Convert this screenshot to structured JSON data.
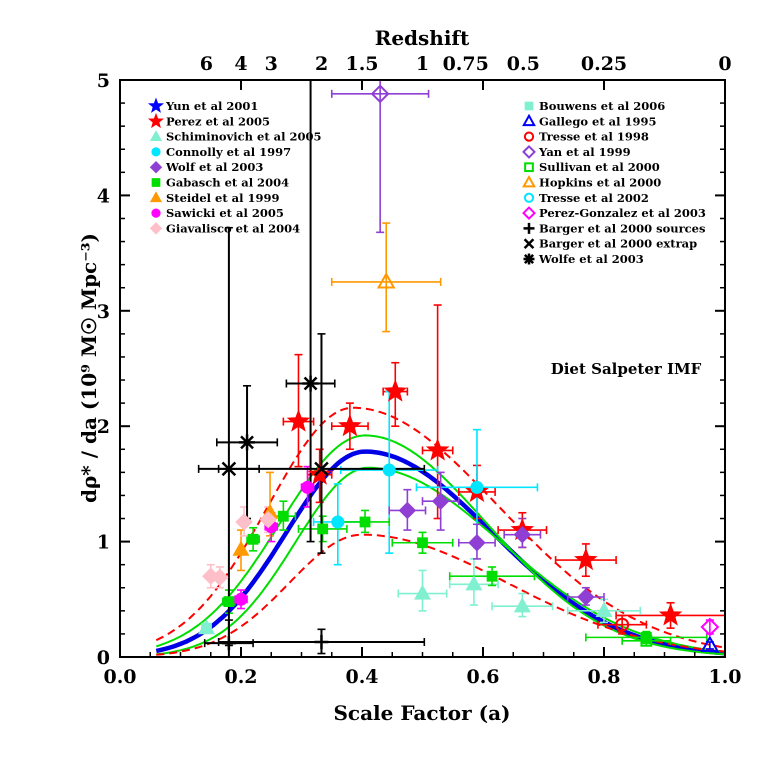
{
  "chart_data": {
    "type": "scatter",
    "title": "",
    "xlabel": "Scale Factor (a)",
    "ylabel": "dρ* / da  (10⁹ M☉ Mpc⁻³)",
    "top_axis_label": "Redshift",
    "xlim": [
      0.0,
      1.0
    ],
    "ylim": [
      0.0,
      5.0
    ],
    "x_ticks": [
      {
        "value": 0.0,
        "label": "0.0"
      },
      {
        "value": 0.2,
        "label": "0.2"
      },
      {
        "value": 0.4,
        "label": "0.4"
      },
      {
        "value": 0.6,
        "label": "0.6"
      },
      {
        "value": 0.8,
        "label": "0.8"
      },
      {
        "value": 1.0,
        "label": "1.0"
      }
    ],
    "y_ticks": [
      {
        "value": 0,
        "label": "0"
      },
      {
        "value": 1,
        "label": "1"
      },
      {
        "value": 2,
        "label": "2"
      },
      {
        "value": 3,
        "label": "3"
      },
      {
        "value": 4,
        "label": "4"
      },
      {
        "value": 5,
        "label": "5"
      }
    ],
    "redshift_ticks": [
      {
        "z": 6,
        "label": "6"
      },
      {
        "z": 4,
        "label": "4"
      },
      {
        "z": 3,
        "label": "3"
      },
      {
        "z": 2,
        "label": "2"
      },
      {
        "z": 1.5,
        "label": "1.5"
      },
      {
        "z": 1,
        "label": "1"
      },
      {
        "z": 0.75,
        "label": "0.75"
      },
      {
        "z": 0.5,
        "label": "0.5"
      },
      {
        "z": 0.25,
        "label": "0.25"
      },
      {
        "z": 0,
        "label": "0"
      }
    ],
    "annotation": "Diet Salpeter IMF",
    "fit_curves": [
      {
        "name": "best fit",
        "style": "solid-thick",
        "color": "#0000e6",
        "peak_a": 0.405,
        "peak_y": 1.78,
        "left_width": 0.13,
        "right_width": 0.21
      },
      {
        "name": "upper 1σ",
        "style": "solid",
        "color": "#00dd00",
        "peak_a": 0.405,
        "peak_y": 1.92,
        "left_width": 0.14,
        "right_width": 0.2
      },
      {
        "name": "lower 1σ",
        "style": "solid",
        "color": "#00dd00",
        "peak_a": 0.41,
        "peak_y": 1.64,
        "left_width": 0.12,
        "right_width": 0.22
      },
      {
        "name": "upper 3σ",
        "style": "dashed",
        "color": "#ff0000",
        "peak_a": 0.385,
        "peak_y": 2.16,
        "left_width": 0.14,
        "right_width": 0.24
      },
      {
        "name": "lower 3σ",
        "style": "dashed",
        "color": "#ff0000",
        "peak_a": 0.4,
        "peak_y": 1.06,
        "left_width": 0.12,
        "right_width": 0.24
      }
    ],
    "series": [
      {
        "name": "Yun et al 2001",
        "symbol": "star",
        "color": "#0000ff",
        "filled": true,
        "points": []
      },
      {
        "name": "Perez et al 2005",
        "symbol": "star",
        "color": "#ff0000",
        "filled": true,
        "points": [
          {
            "x": 0.295,
            "y": 2.04,
            "xerr": 0.025,
            "ylo": 1.65,
            "yhi": 2.62
          },
          {
            "x": 0.33,
            "y": 1.58,
            "xerr": 0.02,
            "ylo": 1.34,
            "yhi": 1.8
          },
          {
            "x": 0.38,
            "y": 2.0,
            "xerr": 0.03,
            "ylo": 1.8,
            "yhi": 2.2
          },
          {
            "x": 0.455,
            "y": 2.3,
            "xerr": 0.02,
            "ylo": 2.0,
            "yhi": 2.55
          },
          {
            "x": 0.525,
            "y": 1.79,
            "xerr": 0.025,
            "ylo": 1.2,
            "yhi": 3.05
          },
          {
            "x": 0.59,
            "y": 1.43,
            "xerr": 0.03,
            "ylo": 1.2,
            "yhi": 1.66
          },
          {
            "x": 0.665,
            "y": 1.1,
            "xerr": 0.04,
            "ylo": 0.95,
            "yhi": 1.25
          },
          {
            "x": 0.77,
            "y": 0.84,
            "xerr": 0.05,
            "ylo": 0.7,
            "yhi": 0.98
          },
          {
            "x": 0.91,
            "y": 0.36,
            "xerr": 0.09,
            "ylo": 0.25,
            "yhi": 0.47
          }
        ]
      },
      {
        "name": "Schiminovich et al 2005",
        "symbol": "triangle",
        "color": "#80f0d0",
        "filled": true,
        "points": [
          {
            "x": 0.143,
            "y": 0.25,
            "xerr": 0.0,
            "ylo": 0.22,
            "yhi": 0.28
          },
          {
            "x": 0.5,
            "y": 0.55,
            "xerr": 0.04,
            "ylo": 0.4,
            "yhi": 0.75
          },
          {
            "x": 0.585,
            "y": 0.63,
            "xerr": 0.04,
            "ylo": 0.45,
            "yhi": 0.85
          },
          {
            "x": 0.665,
            "y": 0.44,
            "xerr": 0.05,
            "ylo": 0.35,
            "yhi": 0.55
          },
          {
            "x": 0.8,
            "y": 0.4,
            "xerr": 0.06,
            "ylo": 0.3,
            "yhi": 0.5
          }
        ]
      },
      {
        "name": "Connolly et al 1997",
        "symbol": "circle",
        "color": "#00e6ff",
        "filled": true,
        "points": [
          {
            "x": 0.36,
            "y": 1.17,
            "xerr": 0.04,
            "ylo": 0.8,
            "yhi": 1.5
          },
          {
            "x": 0.445,
            "y": 1.62,
            "xerr": 0.08,
            "ylo": 0.9,
            "yhi": 2.3
          },
          {
            "x": 0.59,
            "y": 1.47,
            "xerr": 0.1,
            "ylo": 0.95,
            "yhi": 1.97
          }
        ]
      },
      {
        "name": "Wolf et al 2003",
        "symbol": "diamond",
        "color": "#8f3fd3",
        "filled": true,
        "points": [
          {
            "x": 0.475,
            "y": 1.27,
            "xerr": 0.03,
            "ylo": 1.1,
            "yhi": 1.45
          },
          {
            "x": 0.53,
            "y": 1.35,
            "xerr": 0.03,
            "ylo": 1.1,
            "yhi": 1.6
          },
          {
            "x": 0.59,
            "y": 0.99,
            "xerr": 0.03,
            "ylo": 0.85,
            "yhi": 1.15
          },
          {
            "x": 0.665,
            "y": 1.06,
            "xerr": 0.03,
            "ylo": 0.95,
            "yhi": 1.2
          },
          {
            "x": 0.77,
            "y": 0.52,
            "xerr": 0.03,
            "ylo": 0.45,
            "yhi": 0.6
          }
        ]
      },
      {
        "name": "Gabasch et al 2004",
        "symbol": "square",
        "color": "#00dd00",
        "filled": true,
        "points": [
          {
            "x": 0.18,
            "y": 0.48,
            "xerr": 0.01,
            "ylo": 0.38,
            "yhi": 0.58
          },
          {
            "x": 0.22,
            "y": 1.02,
            "xerr": 0.01,
            "ylo": 0.92,
            "yhi": 1.12
          },
          {
            "x": 0.27,
            "y": 1.22,
            "xerr": 0.02,
            "ylo": 1.1,
            "yhi": 1.35
          },
          {
            "x": 0.335,
            "y": 1.11,
            "xerr": 0.04,
            "ylo": 1.0,
            "yhi": 1.22
          },
          {
            "x": 0.405,
            "y": 1.17,
            "xerr": 0.04,
            "ylo": 1.08,
            "yhi": 1.27
          },
          {
            "x": 0.5,
            "y": 0.99,
            "xerr": 0.05,
            "ylo": 0.9,
            "yhi": 1.08
          },
          {
            "x": 0.615,
            "y": 0.7,
            "xerr": 0.07,
            "ylo": 0.62,
            "yhi": 0.78
          },
          {
            "x": 0.87,
            "y": 0.17,
            "xerr": 0.1,
            "ylo": 0.12,
            "yhi": 0.22
          }
        ]
      },
      {
        "name": "Steidel et al 1999",
        "symbol": "triangle",
        "color": "#ff9900",
        "filled": true,
        "points": [
          {
            "x": 0.2,
            "y": 0.93,
            "xerr": 0.0,
            "ylo": 0.75,
            "yhi": 1.1
          },
          {
            "x": 0.248,
            "y": 1.25,
            "xerr": 0.0,
            "ylo": 1.05,
            "yhi": 1.6
          }
        ]
      },
      {
        "name": "Sawicki et al 2005",
        "symbol": "circle",
        "color": "#ff00ff",
        "filled": true,
        "points": [
          {
            "x": 0.2,
            "y": 0.5,
            "xerr": 0.01,
            "ylo": 0.42,
            "yhi": 0.58
          },
          {
            "x": 0.25,
            "y": 1.13,
            "xerr": 0.01,
            "ylo": 1.0,
            "yhi": 1.25
          },
          {
            "x": 0.31,
            "y": 1.47,
            "xerr": 0.01,
            "ylo": 1.3,
            "yhi": 1.65
          }
        ]
      },
      {
        "name": "Giavalisco et al 2004",
        "symbol": "diamond",
        "color": "#ffbfc8",
        "filled": true,
        "points": [
          {
            "x": 0.15,
            "y": 0.7,
            "xerr": 0.0,
            "ylo": 0.6,
            "yhi": 0.8
          },
          {
            "x": 0.165,
            "y": 0.69,
            "xerr": 0.0,
            "ylo": 0.6,
            "yhi": 0.78
          },
          {
            "x": 0.205,
            "y": 1.17,
            "xerr": 0.0,
            "ylo": 1.05,
            "yhi": 1.3
          },
          {
            "x": 0.245,
            "y": 1.19,
            "xerr": 0.0,
            "ylo": 1.08,
            "yhi": 1.3
          }
        ]
      },
      {
        "name": "Bouwens et al 2006",
        "symbol": "square",
        "color": "#80f0d0",
        "filled": true,
        "points": [
          {
            "x": 0.143,
            "y": 0.25,
            "xerr": 0.0,
            "ylo": 0.25,
            "yhi": 0.25
          }
        ]
      },
      {
        "name": "Gallego et al 1995",
        "symbol": "triangle",
        "color": "#0000ff",
        "filled": false,
        "points": [
          {
            "x": 0.975,
            "y": 0.1,
            "xerr": 0.0,
            "ylo": 0.07,
            "yhi": 0.13
          }
        ]
      },
      {
        "name": "Tresse et al 1998",
        "symbol": "circle",
        "color": "#ff0000",
        "filled": false,
        "points": [
          {
            "x": 0.83,
            "y": 0.28,
            "xerr": 0.04,
            "ylo": 0.2,
            "yhi": 0.36
          }
        ]
      },
      {
        "name": "Yan et al 1999",
        "symbol": "diamond",
        "color": "#8f3fd3",
        "filled": false,
        "points": [
          {
            "x": 0.43,
            "y": 4.88,
            "xerr": 0.08,
            "ylo": 3.68,
            "yhi": 5.0
          }
        ]
      },
      {
        "name": "Sullivan et al 2000",
        "symbol": "square",
        "color": "#00dd00",
        "filled": false,
        "points": [
          {
            "x": 0.87,
            "y": 0.14,
            "xerr": 0.04,
            "ylo": 0.1,
            "yhi": 0.18
          }
        ]
      },
      {
        "name": "Hopkins et al 2000",
        "symbol": "triangle",
        "color": "#ff9900",
        "filled": false,
        "points": [
          {
            "x": 0.44,
            "y": 3.25,
            "xerr": 0.09,
            "ylo": 2.82,
            "yhi": 3.76
          }
        ]
      },
      {
        "name": "Tresse et al 2002",
        "symbol": "circle",
        "color": "#00e6ff",
        "filled": false,
        "points": []
      },
      {
        "name": "Perez-Gonzalez et al 2003",
        "symbol": "diamond",
        "color": "#ff00ff",
        "filled": false,
        "points": [
          {
            "x": 0.975,
            "y": 0.26,
            "xerr": 0.0,
            "ylo": 0.2,
            "yhi": 0.32
          }
        ]
      },
      {
        "name": "Barger et al 2000 sources",
        "symbol": "plus",
        "color": "#000000",
        "filled": false,
        "points": [
          {
            "x": 0.18,
            "y": 0.12,
            "xerr": 0.04,
            "ylo": 0.0,
            "yhi": 0.32
          },
          {
            "x": 0.333,
            "y": 0.13,
            "xerr": 0.17,
            "ylo": 0.03,
            "yhi": 0.24
          }
        ]
      },
      {
        "name": "Barger et al 2000 extrap",
        "symbol": "cross",
        "color": "#000000",
        "filled": false,
        "points": [
          {
            "x": 0.18,
            "y": 1.63,
            "xerr": 0.05,
            "ylo": 0.1,
            "yhi": 3.72
          },
          {
            "x": 0.333,
            "y": 1.63,
            "xerr": 0.17,
            "ylo": 0.9,
            "yhi": 2.8
          }
        ]
      },
      {
        "name": "Wolfe et al 2003",
        "symbol": "asterisk",
        "color": "#000000",
        "filled": false,
        "points": [
          {
            "x": 0.21,
            "y": 1.86,
            "xerr": 0.05,
            "ylo": 1.2,
            "yhi": 2.35
          },
          {
            "x": 0.315,
            "y": 2.37,
            "xerr": 0.04,
            "ylo": 1.0,
            "yhi": 5.0
          }
        ]
      }
    ],
    "legend_left": [
      "Yun et al 2001",
      "Perez et al 2005",
      "Schiminovich et al 2005",
      "Connolly et al 1997",
      "Wolf et al 2003",
      "Gabasch et al 2004",
      "Steidel et al 1999",
      "Sawicki et al 2005",
      "Giavalisco et al 2004"
    ],
    "legend_right": [
      "Bouwens et al 2006",
      "Gallego et al 1995",
      "Tresse et al 1998",
      "Yan et al 1999",
      "Sullivan et al 2000",
      "Hopkins et al 2000",
      "Tresse et al 2002",
      "Perez-Gonzalez et al 2003",
      "Barger et al 2000 sources",
      "Barger et al 2000 extrap",
      "Wolfe et al 2003"
    ]
  }
}
